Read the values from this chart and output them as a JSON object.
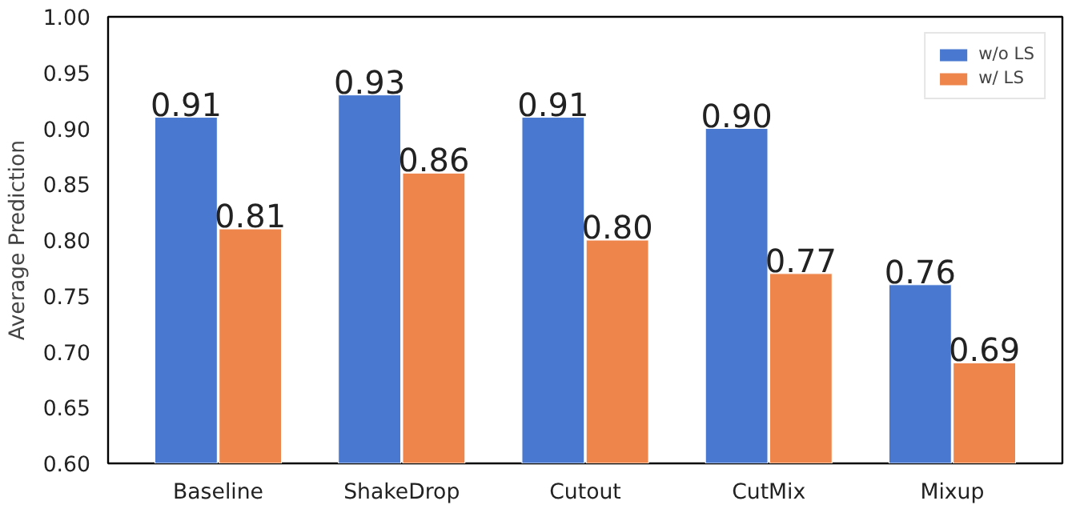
{
  "chart_data": {
    "type": "bar",
    "ylabel": "Average Prediction",
    "categories": [
      "Baseline",
      "ShakeDrop",
      "Cutout",
      "CutMix",
      "Mixup"
    ],
    "series": [
      {
        "name": "w/o LS",
        "color": "#4878d0",
        "values": [
          0.91,
          0.93,
          0.91,
          0.9,
          0.76
        ],
        "value_labels": [
          "0.91",
          "0.93",
          "0.91",
          "0.90",
          "0.76"
        ]
      },
      {
        "name": "w/ LS",
        "color": "#ee854a",
        "values": [
          0.81,
          0.86,
          0.8,
          0.77,
          0.69
        ],
        "value_labels": [
          "0.81",
          "0.86",
          "0.80",
          "0.77",
          "0.69"
        ]
      }
    ],
    "ylim": [
      0.6,
      1.0
    ],
    "yticks": [
      {
        "value": 0.6,
        "label": "0.60"
      },
      {
        "value": 0.65,
        "label": "0.65"
      },
      {
        "value": 0.7,
        "label": "0.70"
      },
      {
        "value": 0.75,
        "label": "0.75"
      },
      {
        "value": 0.8,
        "label": "0.80"
      },
      {
        "value": 0.85,
        "label": "0.85"
      },
      {
        "value": 0.9,
        "label": "0.90"
      },
      {
        "value": 0.95,
        "label": "0.95"
      },
      {
        "value": 1.0,
        "label": "1.00"
      }
    ],
    "grid": false,
    "legend": "top right"
  }
}
